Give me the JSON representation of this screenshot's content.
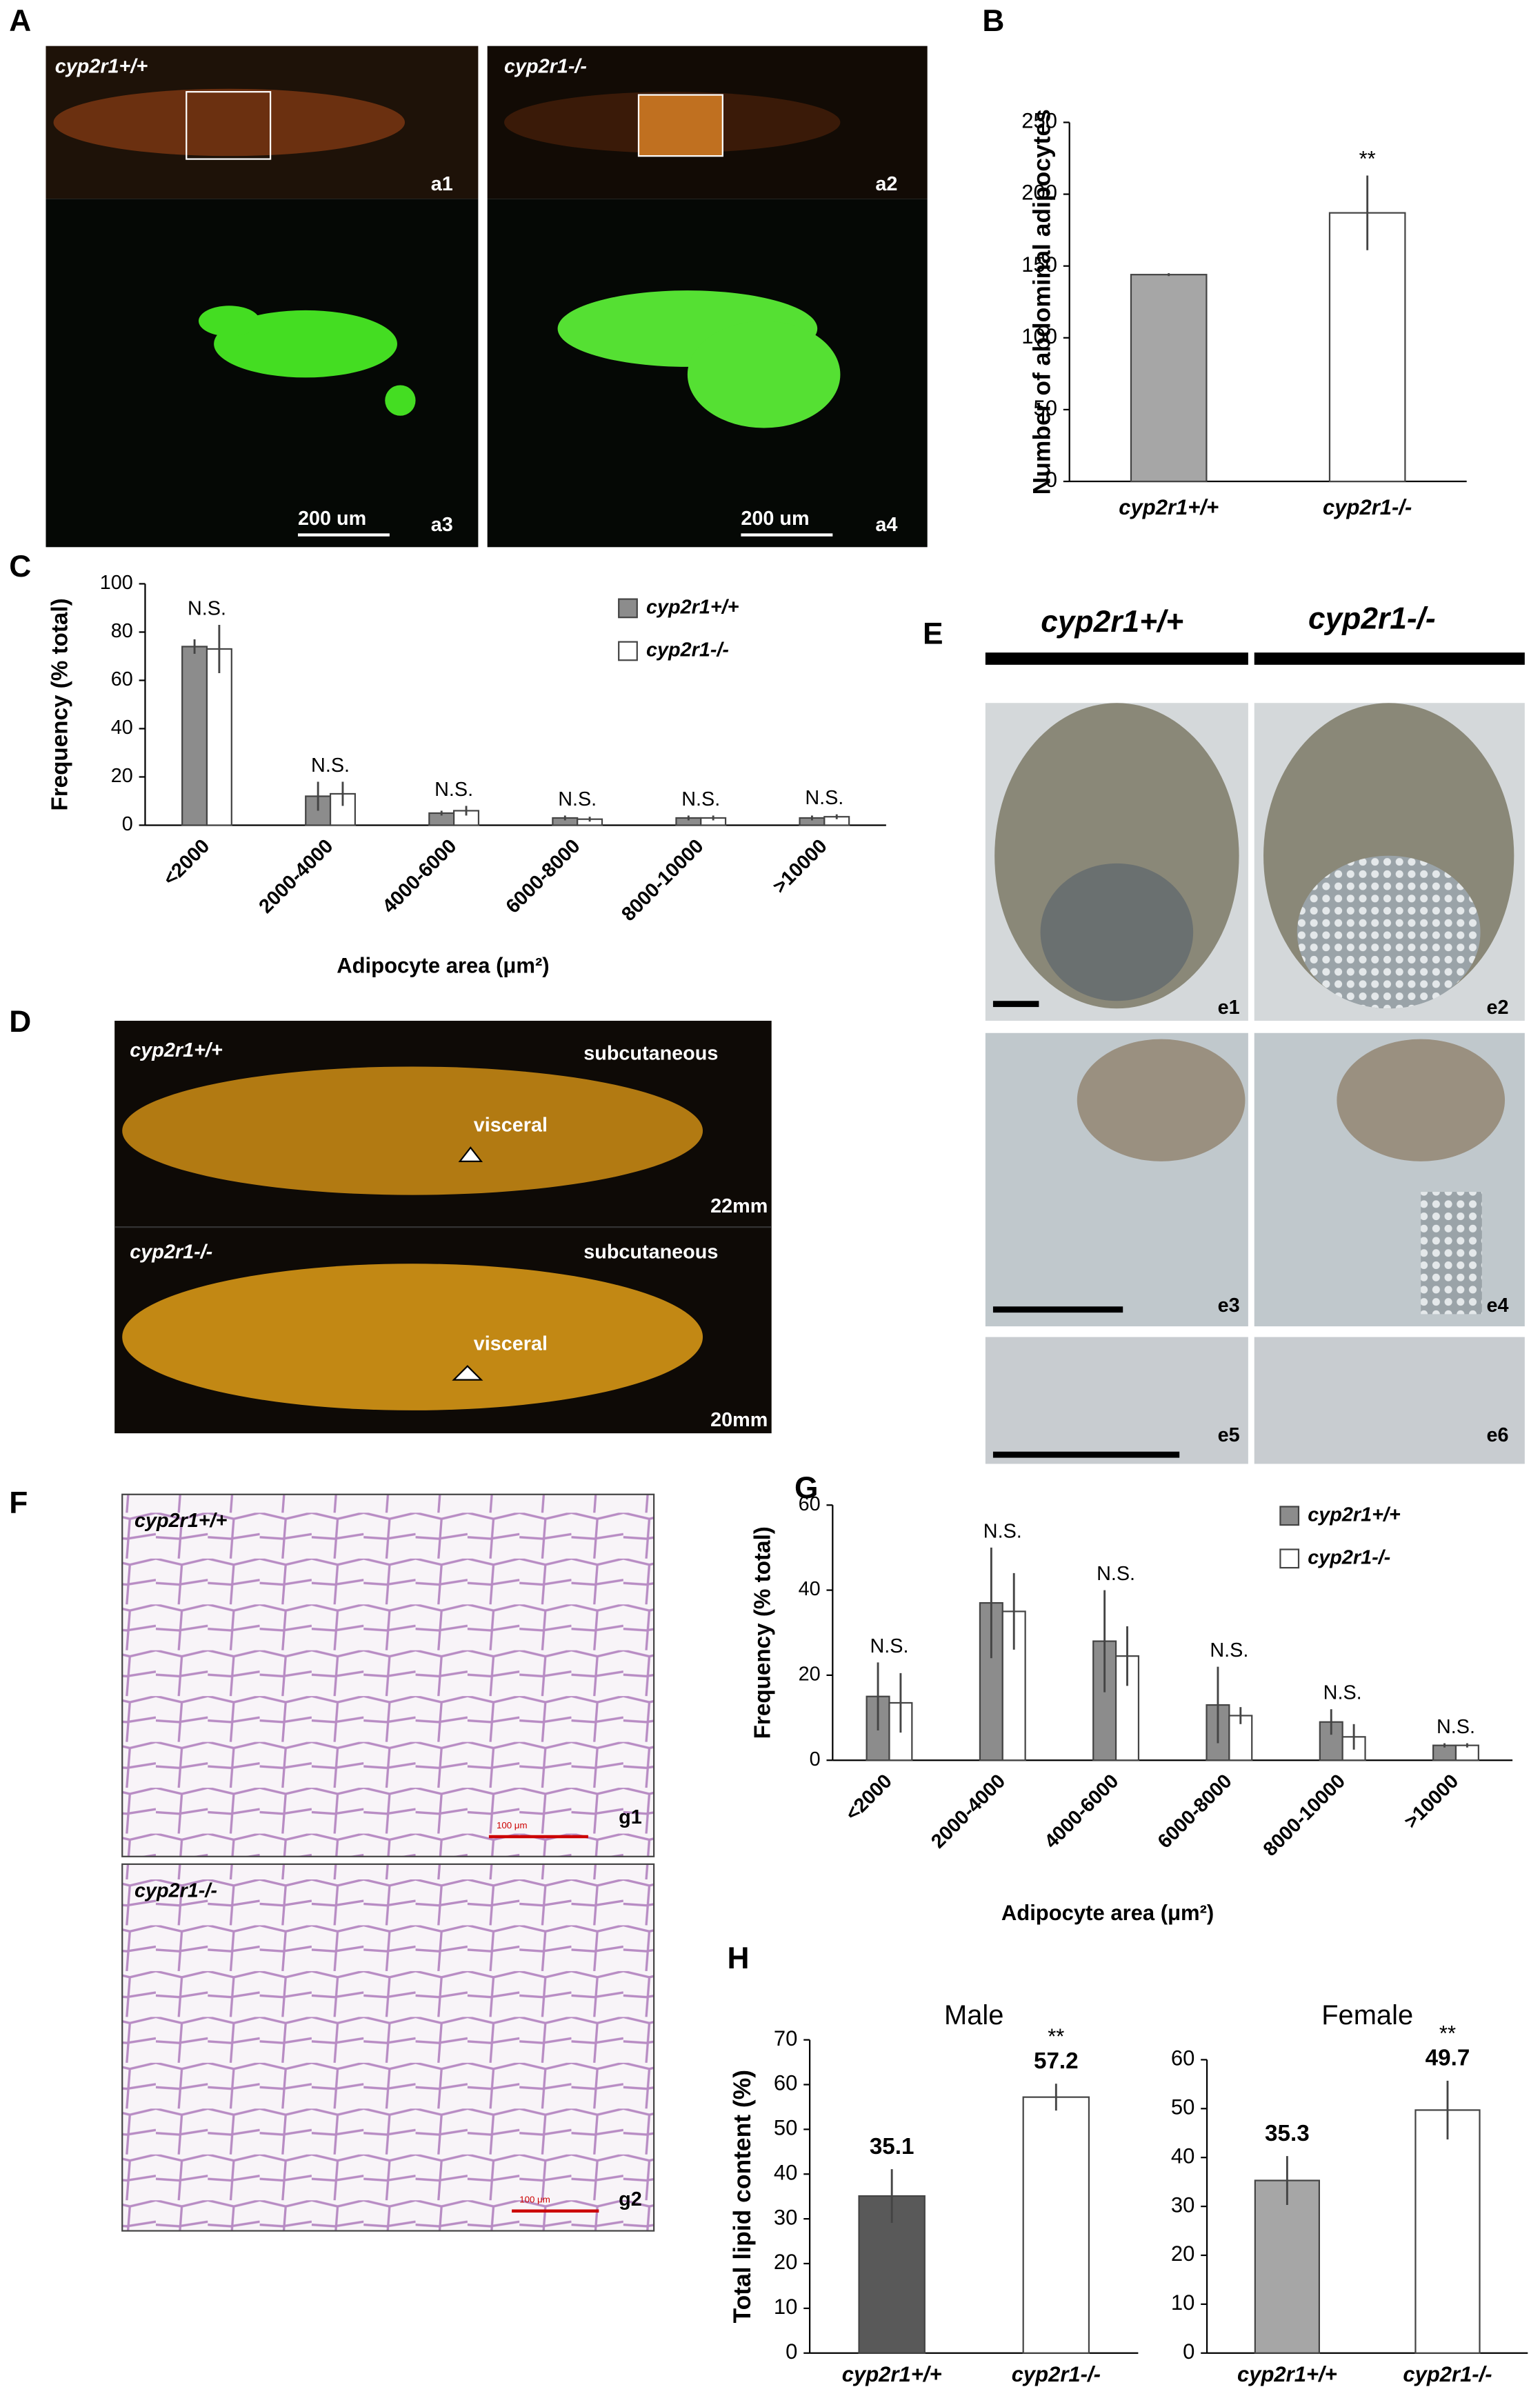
{
  "chart_data": [
    {
      "type": "bar",
      "ylabel": "Number of abdominal adipocytes",
      "categories": [
        "cyp2r1+/+",
        "cyp2r1-/-"
      ],
      "values": [
        144,
        187
      ],
      "errors": [
        1,
        26
      ],
      "colors": [
        "#a6a6a6",
        "#ffffff"
      ],
      "annotations": [
        null,
        "**"
      ],
      "ylim": [
        0,
        250
      ],
      "yticks": [
        0,
        50,
        100,
        150,
        200,
        250
      ]
    },
    {
      "type": "bar",
      "ylabel": "Frequency (% total)",
      "xlabel": "Adipocyte area (μm²)",
      "categories": [
        "<2000",
        "2000-4000",
        "4000-6000",
        "6000-8000",
        "8000-10000",
        ">10000"
      ],
      "series": [
        {
          "name": "cyp2r1+/+",
          "color": "#8c8c8c",
          "values": [
            74,
            12,
            5,
            3,
            3,
            3
          ],
          "errors": [
            3,
            6,
            1,
            1,
            1,
            1
          ]
        },
        {
          "name": "cyp2r1-/-",
          "color": "#ffffff",
          "values": [
            73,
            13,
            6,
            2.5,
            3,
            3.5
          ],
          "errors": [
            10,
            5,
            2,
            1,
            1,
            1
          ]
        }
      ],
      "annotations": [
        "N.S.",
        "N.S.",
        "N.S.",
        "N.S.",
        "N.S.",
        "N.S."
      ],
      "ylim": [
        0,
        100
      ],
      "yticks": [
        0,
        20,
        40,
        60,
        80,
        100
      ],
      "legend": "top-right"
    },
    {
      "type": "bar",
      "ylabel": "Frequency (% total)",
      "xlabel": "Adipocyte area (μm²)",
      "categories": [
        "<2000",
        "2000-4000",
        "4000-6000",
        "6000-8000",
        "8000-10000",
        ">10000"
      ],
      "series": [
        {
          "name": "cyp2r1+/+",
          "color": "#8c8c8c",
          "values": [
            15,
            37,
            28,
            13,
            9,
            3.5
          ],
          "errors": [
            8,
            13,
            12,
            9,
            3,
            0.5
          ]
        },
        {
          "name": "cyp2r1-/-",
          "color": "#ffffff",
          "values": [
            13.5,
            35,
            24.5,
            10.5,
            5.5,
            3.5
          ],
          "errors": [
            7,
            9,
            7,
            2,
            3,
            0.5
          ]
        }
      ],
      "annotations": [
        "N.S.",
        "N.S.",
        "N.S.",
        "N.S.",
        "N.S.",
        "N.S."
      ],
      "ylim": [
        0,
        60
      ],
      "yticks": [
        0,
        20,
        40,
        60
      ],
      "legend": "top-right"
    },
    {
      "type": "bar",
      "title": "Male",
      "ylabel": "Total lipid content (%)",
      "categories": [
        "cyp2r1+/+",
        "cyp2r1-/-"
      ],
      "values": [
        35.1,
        57.2
      ],
      "errors": [
        6,
        3
      ],
      "colors": [
        "#595959",
        "#ffffff"
      ],
      "annotations": [
        null,
        "**"
      ],
      "ylim": [
        0,
        70
      ],
      "yticks": [
        0,
        10,
        20,
        30,
        40,
        50,
        60,
        70
      ]
    },
    {
      "type": "bar",
      "title": "Female",
      "categories": [
        "cyp2r1+/+",
        "cyp2r1-/-"
      ],
      "values": [
        35.3,
        49.7
      ],
      "errors": [
        5,
        6
      ],
      "colors": [
        "#a6a6a6",
        "#ffffff"
      ],
      "annotations": [
        null,
        "**"
      ],
      "ylim": [
        0,
        60
      ],
      "yticks": [
        0,
        10,
        20,
        30,
        40,
        50,
        60
      ]
    }
  ],
  "panels": {
    "A": {
      "letter": "A",
      "labels": [
        "cyp2r1+/+",
        "cyp2r1-/-",
        "a1",
        "a2",
        "a3",
        "a4"
      ],
      "scale": "200 um"
    },
    "B": {
      "letter": "B"
    },
    "C": {
      "letter": "C"
    },
    "D": {
      "letter": "D",
      "labels": [
        "cyp2r1+/+",
        "subcutaneous",
        "visceral",
        "22mm",
        "cyp2r1-/-",
        "subcutaneous",
        "visceral",
        "20mm"
      ]
    },
    "E": {
      "letter": "E",
      "headers": [
        "cyp2r1+/+",
        "cyp2r1-/-"
      ],
      "labels": [
        "e1",
        "e2",
        "e3",
        "e4",
        "e5",
        "e6"
      ]
    },
    "F": {
      "letter": "F",
      "labels": [
        "cyp2r1+/+",
        "g1",
        "cyp2r1-/-",
        "g2"
      ],
      "scale": "100 μm"
    },
    "G": {
      "letter": "G"
    },
    "H": {
      "letter": "H"
    }
  }
}
